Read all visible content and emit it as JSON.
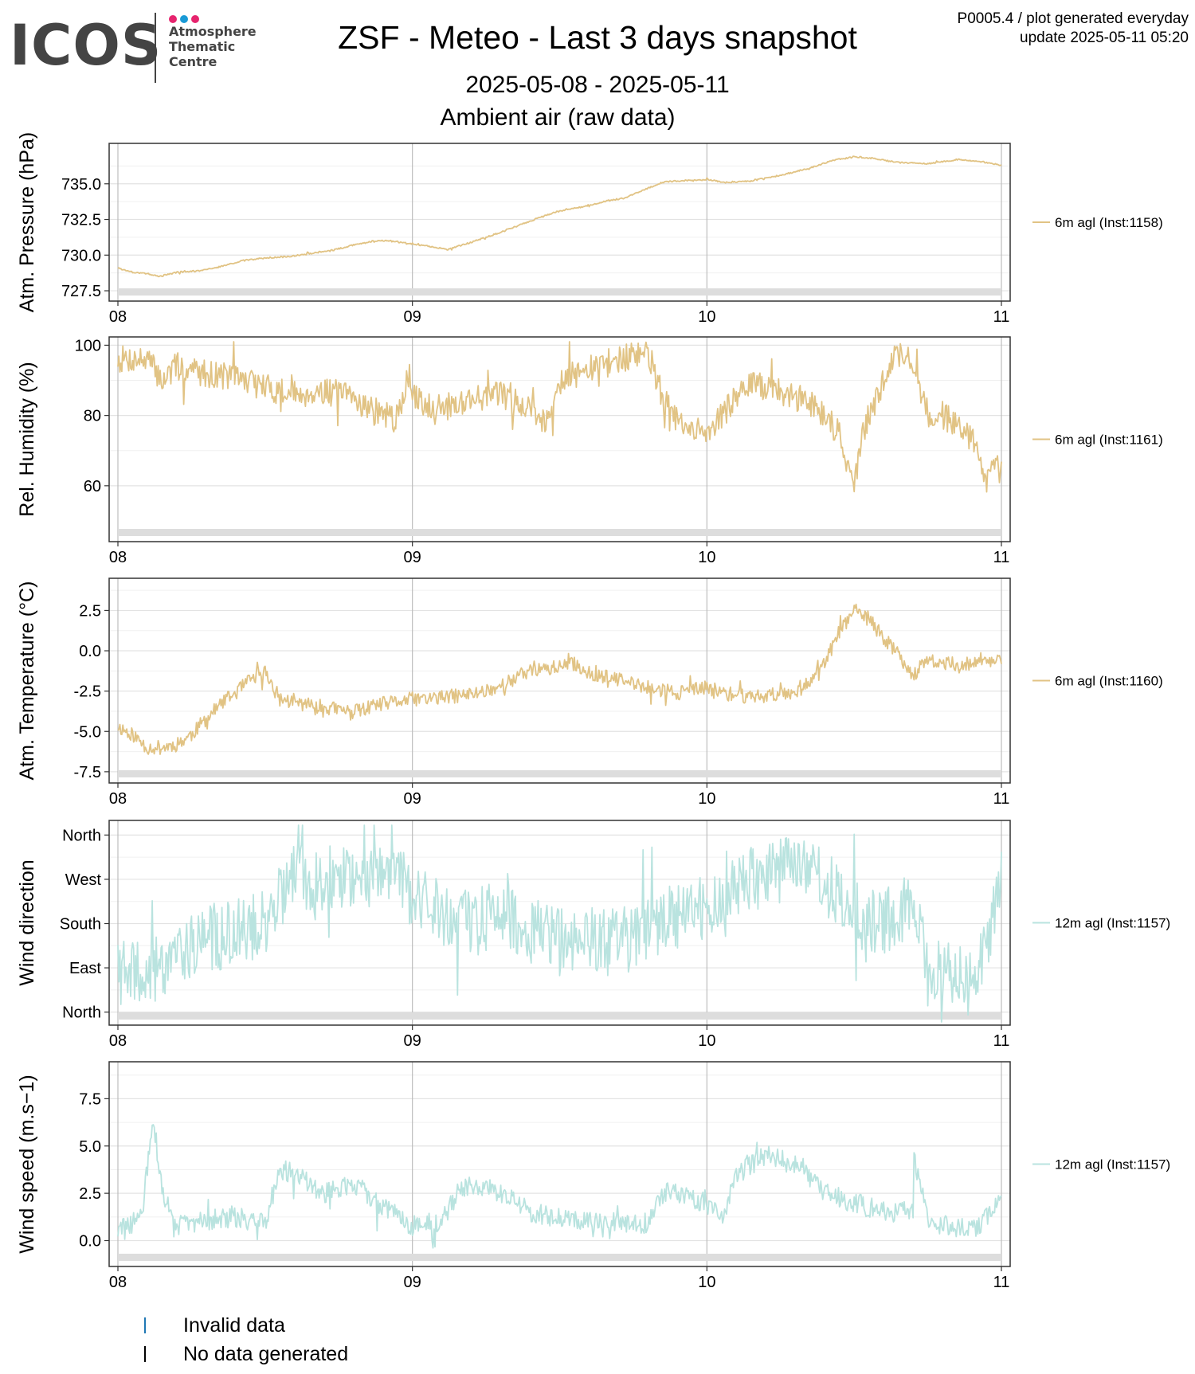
{
  "header": {
    "logo_word": "ICOS",
    "logo_lines": [
      "Atmosphere",
      "Thematic",
      "Centre"
    ],
    "logo_dot_colors": [
      "#e6246e",
      "#1a9ad6",
      "#e6246e"
    ],
    "title": "ZSF - Meteo - Last 3 days snapshot",
    "date_range": "2025-05-08 - 2025-05-11",
    "subtitle": "Ambient air (raw data)",
    "plot_code": "P0005.4 / plot generated everyday",
    "update": "update  2025-05-11 05:20"
  },
  "colors": {
    "temperature_series": "#e1c384",
    "wind_series": "#b9e3df",
    "no_data_band": "#dddddd",
    "invalid_data_mark": "#1f77b4",
    "no_data_mark": "#000000"
  },
  "footer_legend": {
    "invalid": "Invalid data",
    "nodata": "No data generated"
  },
  "chart_data": [
    {
      "type": "line",
      "ylabel": "Atm. Pressure (hPa)",
      "legend": "6m agl (Inst:1158)",
      "series_color": "#e1c384",
      "x_ticks": [
        "08",
        "09",
        "10",
        "11"
      ],
      "x_range_days": [
        0,
        3
      ],
      "y_ticks": [
        727.5,
        730.0,
        732.5,
        735.0
      ],
      "y_tick_labels": [
        "727.5",
        "730.0",
        "732.5",
        "735.0"
      ],
      "ylim": [
        727.0,
        737.5
      ],
      "noise": 0.05,
      "noise_seed": 3,
      "points": [
        [
          0,
          729.1
        ],
        [
          0.05,
          728.8
        ],
        [
          0.1,
          728.7
        ],
        [
          0.14,
          728.5
        ],
        [
          0.2,
          728.8
        ],
        [
          0.28,
          728.9
        ],
        [
          0.35,
          729.2
        ],
        [
          0.42,
          729.6
        ],
        [
          0.5,
          729.8
        ],
        [
          0.58,
          729.9
        ],
        [
          0.65,
          730.1
        ],
        [
          0.72,
          730.3
        ],
        [
          0.8,
          730.7
        ],
        [
          0.87,
          731.0
        ],
        [
          0.92,
          731.0
        ],
        [
          1.0,
          730.8
        ],
        [
          1.06,
          730.6
        ],
        [
          1.12,
          730.4
        ],
        [
          1.2,
          730.9
        ],
        [
          1.3,
          731.6
        ],
        [
          1.4,
          732.4
        ],
        [
          1.5,
          733.1
        ],
        [
          1.58,
          733.4
        ],
        [
          1.66,
          733.8
        ],
        [
          1.72,
          734.0
        ],
        [
          1.8,
          734.7
        ],
        [
          1.85,
          735.1
        ],
        [
          1.9,
          735.2
        ],
        [
          2.0,
          735.3
        ],
        [
          2.06,
          735.1
        ],
        [
          2.15,
          735.2
        ],
        [
          2.25,
          735.6
        ],
        [
          2.35,
          736.1
        ],
        [
          2.42,
          736.6
        ],
        [
          2.5,
          736.9
        ],
        [
          2.56,
          736.8
        ],
        [
          2.65,
          736.5
        ],
        [
          2.75,
          736.4
        ],
        [
          2.85,
          736.7
        ],
        [
          2.92,
          736.6
        ],
        [
          3.0,
          736.3
        ]
      ]
    },
    {
      "type": "line",
      "ylabel": "Rel. Humidity (%)",
      "legend": "6m agl (Inst:1161)",
      "series_color": "#e1c384",
      "x_ticks": [
        "08",
        "09",
        "10",
        "11"
      ],
      "x_range_days": [
        0,
        3
      ],
      "y_ticks": [
        60,
        80,
        100
      ],
      "y_tick_labels": [
        "60",
        "80",
        "100"
      ],
      "ylim": [
        45,
        101
      ],
      "noise": 4,
      "noise_seed": 7,
      "points": [
        [
          0,
          96
        ],
        [
          0.06,
          96
        ],
        [
          0.1,
          96
        ],
        [
          0.15,
          90
        ],
        [
          0.2,
          94
        ],
        [
          0.3,
          92
        ],
        [
          0.4,
          91
        ],
        [
          0.5,
          88
        ],
        [
          0.6,
          86
        ],
        [
          0.7,
          87
        ],
        [
          0.8,
          85
        ],
        [
          0.9,
          80
        ],
        [
          0.95,
          79
        ],
        [
          0.98,
          90
        ],
        [
          1.0,
          85
        ],
        [
          1.1,
          82
        ],
        [
          1.2,
          85
        ],
        [
          1.3,
          86
        ],
        [
          1.35,
          85
        ],
        [
          1.4,
          82
        ],
        [
          1.45,
          78
        ],
        [
          1.5,
          90
        ],
        [
          1.6,
          93
        ],
        [
          1.7,
          96
        ],
        [
          1.75,
          97
        ],
        [
          1.8,
          98
        ],
        [
          1.85,
          85
        ],
        [
          1.9,
          78
        ],
        [
          1.95,
          75
        ],
        [
          2.0,
          76
        ],
        [
          2.05,
          80
        ],
        [
          2.1,
          85
        ],
        [
          2.15,
          89
        ],
        [
          2.2,
          88
        ],
        [
          2.3,
          85
        ],
        [
          2.35,
          84
        ],
        [
          2.4,
          80
        ],
        [
          2.45,
          75
        ],
        [
          2.48,
          65
        ],
        [
          2.5,
          60
        ],
        [
          2.53,
          75
        ],
        [
          2.58,
          85
        ],
        [
          2.62,
          95
        ],
        [
          2.66,
          98
        ],
        [
          2.7,
          95
        ],
        [
          2.75,
          80
        ],
        [
          2.8,
          80
        ],
        [
          2.85,
          78
        ],
        [
          2.9,
          73
        ],
        [
          2.95,
          63
        ],
        [
          2.98,
          65
        ],
        [
          3.0,
          63
        ]
      ]
    },
    {
      "type": "line",
      "ylabel": "Atm. Temperature (°C)",
      "legend": "6m agl (Inst:1160)",
      "series_color": "#e1c384",
      "x_ticks": [
        "08",
        "09",
        "10",
        "11"
      ],
      "x_range_days": [
        0,
        3
      ],
      "y_ticks": [
        -7.5,
        -5.0,
        -2.5,
        0.0,
        2.5
      ],
      "y_tick_labels": [
        "-7.5",
        "-5.0",
        "-2.5",
        "0.0",
        "2.5"
      ],
      "ylim": [
        -8.0,
        4.2
      ],
      "noise": 0.45,
      "noise_seed": 11,
      "points": [
        [
          0,
          -4.7
        ],
        [
          0.05,
          -5.2
        ],
        [
          0.1,
          -6.0
        ],
        [
          0.15,
          -6.0
        ],
        [
          0.2,
          -5.8
        ],
        [
          0.25,
          -5.2
        ],
        [
          0.3,
          -4.2
        ],
        [
          0.35,
          -3.3
        ],
        [
          0.4,
          -2.6
        ],
        [
          0.45,
          -1.8
        ],
        [
          0.5,
          -1.3
        ],
        [
          0.55,
          -3.0
        ],
        [
          0.6,
          -3.2
        ],
        [
          0.7,
          -3.5
        ],
        [
          0.8,
          -3.8
        ],
        [
          0.9,
          -3.3
        ],
        [
          1.0,
          -3.0
        ],
        [
          1.1,
          -2.9
        ],
        [
          1.2,
          -2.7
        ],
        [
          1.3,
          -2.2
        ],
        [
          1.4,
          -1.2
        ],
        [
          1.5,
          -1.0
        ],
        [
          1.55,
          -0.8
        ],
        [
          1.6,
          -1.4
        ],
        [
          1.7,
          -1.8
        ],
        [
          1.8,
          -2.3
        ],
        [
          1.9,
          -2.6
        ],
        [
          2.0,
          -2.3
        ],
        [
          2.1,
          -2.8
        ],
        [
          2.2,
          -2.8
        ],
        [
          2.3,
          -2.5
        ],
        [
          2.35,
          -1.8
        ],
        [
          2.4,
          -0.8
        ],
        [
          2.45,
          1.2
        ],
        [
          2.5,
          2.5
        ],
        [
          2.55,
          2.0
        ],
        [
          2.6,
          0.8
        ],
        [
          2.65,
          -0.2
        ],
        [
          2.7,
          -1.5
        ],
        [
          2.75,
          -0.6
        ],
        [
          2.8,
          -0.8
        ],
        [
          2.9,
          -0.8
        ],
        [
          3.0,
          -0.5
        ]
      ]
    },
    {
      "type": "line",
      "ylabel": "Wind direction",
      "legend": "12m agl (Inst:1157)",
      "series_color": "#b9e3df",
      "x_ticks": [
        "08",
        "09",
        "10",
        "11"
      ],
      "x_range_days": [
        0,
        3
      ],
      "y_ticks": [
        0,
        90,
        180,
        270,
        360
      ],
      "y_tick_labels": [
        "North",
        "East",
        "South",
        "West",
        "North"
      ],
      "ylim": [
        -20,
        380
      ],
      "noise": 70,
      "noise_seed": 19,
      "points": [
        [
          0,
          80
        ],
        [
          0.1,
          70
        ],
        [
          0.2,
          130
        ],
        [
          0.3,
          150
        ],
        [
          0.4,
          160
        ],
        [
          0.5,
          185
        ],
        [
          0.55,
          240
        ],
        [
          0.6,
          270
        ],
        [
          0.7,
          275
        ],
        [
          0.8,
          280
        ],
        [
          0.9,
          285
        ],
        [
          0.95,
          300
        ],
        [
          1.0,
          230
        ],
        [
          1.1,
          200
        ],
        [
          1.2,
          180
        ],
        [
          1.3,
          200
        ],
        [
          1.4,
          170
        ],
        [
          1.5,
          140
        ],
        [
          1.6,
          150
        ],
        [
          1.7,
          140
        ],
        [
          1.8,
          170
        ],
        [
          1.9,
          200
        ],
        [
          2.0,
          200
        ],
        [
          2.1,
          250
        ],
        [
          2.2,
          290
        ],
        [
          2.3,
          290
        ],
        [
          2.4,
          260
        ],
        [
          2.5,
          200
        ],
        [
          2.6,
          180
        ],
        [
          2.7,
          230
        ],
        [
          2.75,
          110
        ],
        [
          2.8,
          80
        ],
        [
          2.9,
          60
        ],
        [
          2.95,
          120
        ],
        [
          3.0,
          300
        ]
      ]
    },
    {
      "type": "line",
      "ylabel": "Wind speed (m.s−1)",
      "legend": "12m agl (Inst:1157)",
      "series_color": "#b9e3df",
      "x_ticks": [
        "08",
        "09",
        "10",
        "11"
      ],
      "x_range_days": [
        0,
        3
      ],
      "y_ticks": [
        0.0,
        2.5,
        5.0,
        7.5
      ],
      "y_tick_labels": [
        "0.0",
        "2.5",
        "5.0",
        "7.5"
      ],
      "ylim": [
        -1.2,
        9.2
      ],
      "noise": 0.55,
      "noise_seed": 29,
      "points": [
        [
          0,
          0.5
        ],
        [
          0.08,
          1.2
        ],
        [
          0.12,
          6.5
        ],
        [
          0.15,
          2.5
        ],
        [
          0.2,
          0.8
        ],
        [
          0.3,
          1.1
        ],
        [
          0.4,
          1.2
        ],
        [
          0.5,
          1.0
        ],
        [
          0.55,
          3.8
        ],
        [
          0.6,
          3.5
        ],
        [
          0.7,
          2.5
        ],
        [
          0.8,
          3.0
        ],
        [
          0.9,
          1.8
        ],
        [
          1.0,
          0.8
        ],
        [
          1.05,
          1.0
        ],
        [
          1.1,
          0.8
        ],
        [
          1.15,
          2.5
        ],
        [
          1.2,
          3.0
        ],
        [
          1.3,
          2.5
        ],
        [
          1.4,
          1.5
        ],
        [
          1.5,
          1.2
        ],
        [
          1.6,
          1.1
        ],
        [
          1.7,
          1.0
        ],
        [
          1.8,
          0.9
        ],
        [
          1.85,
          2.5
        ],
        [
          1.9,
          2.5
        ],
        [
          2.0,
          2.0
        ],
        [
          2.05,
          1.0
        ],
        [
          2.1,
          3.5
        ],
        [
          2.2,
          4.5
        ],
        [
          2.3,
          4.0
        ],
        [
          2.4,
          2.5
        ],
        [
          2.5,
          2.0
        ],
        [
          2.6,
          1.5
        ],
        [
          2.7,
          1.5
        ],
        [
          2.7,
          4.5
        ],
        [
          2.75,
          1.2
        ],
        [
          2.8,
          0.8
        ],
        [
          2.9,
          0.6
        ],
        [
          2.95,
          1.2
        ],
        [
          3.0,
          2.5
        ]
      ]
    }
  ]
}
